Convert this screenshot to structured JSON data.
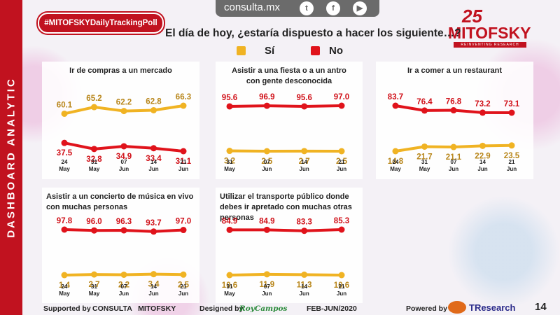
{
  "sidebar_text": "DASHBOARD ANALYTIC",
  "hashtag": "#MITOFSKYDailyTrackingPoll",
  "topbar": {
    "site": "consulta.mx",
    "icons": [
      "twitter-icon",
      "facebook-icon",
      "youtube-icon"
    ]
  },
  "logo": {
    "number": "25",
    "name": "MITOFSKY",
    "tagline": "REINVENTING RESEARCH"
  },
  "question": "El día de hoy, ¿estaría dispuesto a hacer los siguiente…?",
  "legend": {
    "yes": "Sí",
    "no": "No"
  },
  "colors": {
    "yes": "#f0b323",
    "no": "#e0131b",
    "brand": "#c1121f"
  },
  "chart_data": [
    {
      "type": "line",
      "title": "Ir de compras a un mercado",
      "categories": [
        "24 May",
        "31 May",
        "07 Jun",
        "14 Jun",
        "21 Jun"
      ],
      "cat_top": [
        "24",
        "31",
        "07",
        "14",
        "21"
      ],
      "cat_bottom": [
        "May",
        "May",
        "Jun",
        "Jun",
        "Jun"
      ],
      "series": [
        {
          "name": "Sí",
          "values": [
            60.1,
            65.2,
            62.2,
            62.8,
            66.3
          ]
        },
        {
          "name": "No",
          "values": [
            37.5,
            32.8,
            34.9,
            33.4,
            31.1
          ]
        }
      ]
    },
    {
      "type": "line",
      "title": "Asistir a una fiesta o a un antro con gente desconocida",
      "categories": [
        "31 May",
        "07 Jun",
        "14 Jun",
        "21 Jun"
      ],
      "cat_top": [
        "31",
        "07",
        "14",
        "21"
      ],
      "cat_bottom": [
        "May",
        "Jun",
        "Jun",
        "Jun"
      ],
      "series": [
        {
          "name": "Sí",
          "values": [
            3.2,
            2.5,
            2.7,
            2.5
          ]
        },
        {
          "name": "No",
          "values": [
            95.6,
            96.9,
            95.6,
            97.0
          ]
        }
      ]
    },
    {
      "type": "line",
      "title": "Ir a comer a un restaurant",
      "categories": [
        "24 May",
        "31 May",
        "07 Jun",
        "14 Jun",
        "21 Jun"
      ],
      "cat_top": [
        "24",
        "31",
        "07",
        "14",
        "21"
      ],
      "cat_bottom": [
        "May",
        "May",
        "Jun",
        "Jun",
        "Jun"
      ],
      "series": [
        {
          "name": "Sí",
          "values": [
            14.8,
            21.7,
            21.1,
            22.9,
            23.5
          ]
        },
        {
          "name": "No",
          "values": [
            83.7,
            76.4,
            76.8,
            73.2,
            73.1
          ]
        }
      ]
    },
    {
      "type": "line",
      "title": "Asistir a un concierto de música en vivo con muchas personas",
      "categories": [
        "24 May",
        "31 May",
        "07 Jun",
        "14 Jun",
        "21 Jun"
      ],
      "cat_top": [
        "24",
        "31",
        "07",
        "14",
        "21"
      ],
      "cat_bottom": [
        "May",
        "May",
        "Jun",
        "Jun",
        "Jun"
      ],
      "series": [
        {
          "name": "Sí",
          "values": [
            1.4,
            2.7,
            2.2,
            3.4,
            2.5
          ]
        },
        {
          "name": "No",
          "values": [
            97.8,
            96.0,
            96.3,
            93.7,
            97.0
          ]
        }
      ]
    },
    {
      "type": "line",
      "title": "Utilizar el transporte público donde debes ir apretado con muchas otras personas",
      "categories": [
        "31 May",
        "07 Jun",
        "14 Jun",
        "21 Jun"
      ],
      "cat_top": [
        "31",
        "07",
        "14",
        "21"
      ],
      "cat_bottom": [
        "May",
        "Jun",
        "Jun",
        "Jun"
      ],
      "series": [
        {
          "name": "Sí",
          "values": [
            10.6,
            11.9,
            11.3,
            10.6
          ]
        },
        {
          "name": "No",
          "values": [
            84.9,
            84.9,
            83.3,
            85.3
          ]
        }
      ]
    }
  ],
  "footer": {
    "supported": "Supported by",
    "consulta": "CONSULTA   MITOFSKY",
    "designed": "Designed by",
    "designer": "RoyCampos",
    "period": "FEB-JUN/2020",
    "powered": "Powered by",
    "tresearch": "TResearch"
  },
  "page_number": "14"
}
